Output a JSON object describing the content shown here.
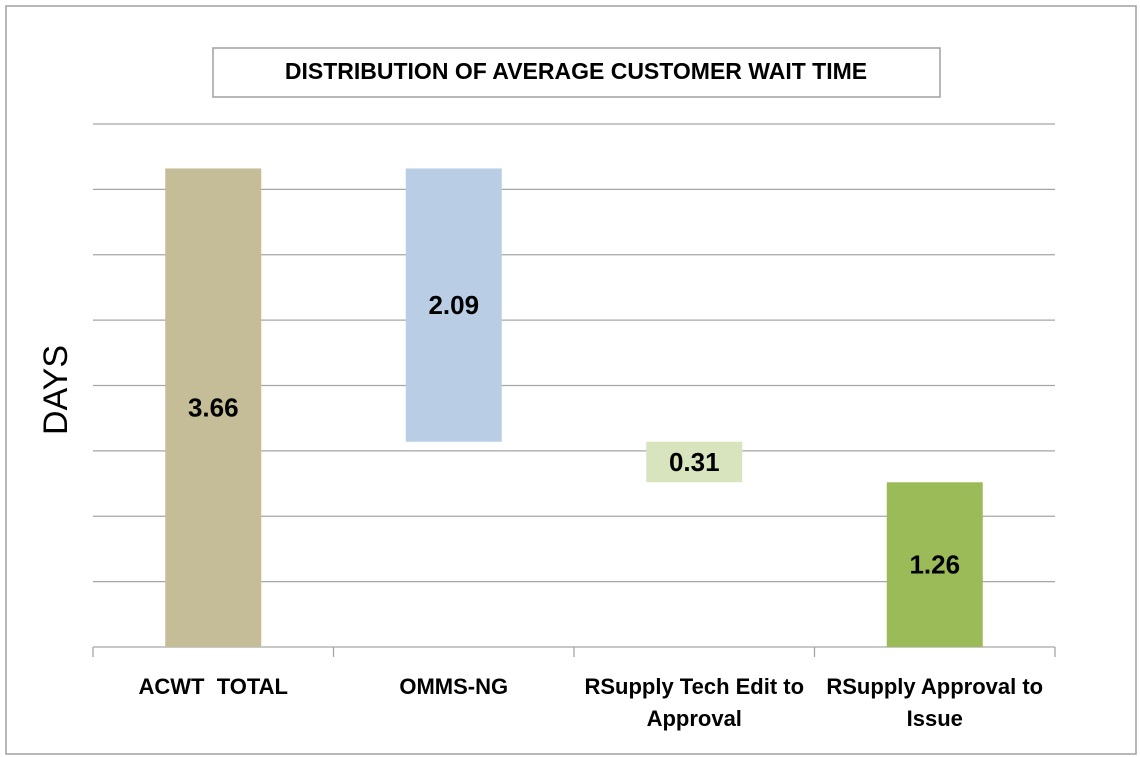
{
  "chart_data": {
    "type": "waterfall",
    "title": "DISTRIBUTION OF AVERAGE CUSTOMER WAIT TIME",
    "ylabel": "DAYS",
    "categories": [
      "ACWT  TOTAL",
      "OMMS-NG",
      "RSupply Tech Edit to Approval",
      "RSupply Approval to Issue"
    ],
    "values": [
      3.66,
      2.09,
      0.31,
      1.26
    ],
    "colors": [
      "#c4bd97",
      "#b9cde5",
      "#d7e4bd",
      "#9bbb59"
    ],
    "ylim": [
      0,
      4
    ],
    "yticks": [
      0,
      0.5,
      1,
      1.5,
      2,
      2.5,
      3,
      3.5,
      4
    ],
    "grid": true
  }
}
